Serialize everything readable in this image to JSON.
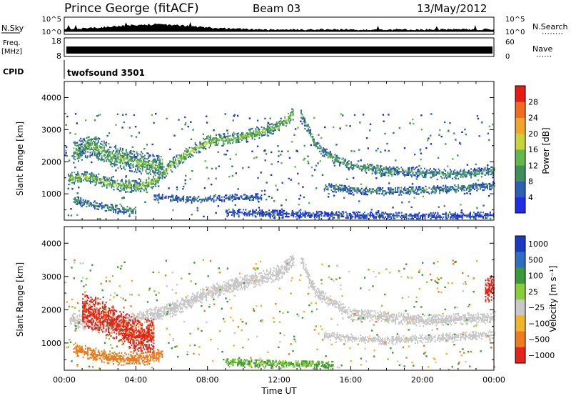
{
  "header": {
    "station": "Prince George (fitACF)",
    "beam": "Beam 03",
    "date": "13/May/2012"
  },
  "top_panels": {
    "nsky_label": "N.Sky",
    "nsky_ticks": [
      "10^5",
      "10^0"
    ],
    "nsearch_label": "N.Search",
    "nsearch_ticks": [
      "10^5",
      "10^0"
    ],
    "freq_label_line1": "Freq.",
    "freq_label_line2": "[MHz]",
    "freq_ticks": [
      "18",
      "8"
    ],
    "nave_label": "Nave",
    "nave_ticks": [
      "60",
      "0"
    ],
    "cpid_label": "CPID",
    "cpid_value": "twofsound 3501"
  },
  "colors": {
    "scatter_gray": "#c8c8c8",
    "power_scale": [
      "#1f2ee6",
      "#2c5fb5",
      "#3f8f5a",
      "#63b84a",
      "#c8d43a",
      "#f2a52a",
      "#f26b1e",
      "#e61b14"
    ],
    "velocity_scale": [
      "#1c39c4",
      "#2f6fc2",
      "#3a9a3a",
      "#8acc3c",
      "#c8c8c8",
      "#f0b42a",
      "#f07a1e",
      "#e6231a"
    ]
  },
  "chart_data": [
    {
      "type": "heatmap",
      "title": "",
      "xlabel": "Time UT",
      "ylabel": "Slant Range [km]",
      "x_ticks": [
        "00:00",
        "04:00",
        "08:00",
        "12:00",
        "16:00",
        "20:00",
        "00:00"
      ],
      "y_ticks": [
        "1000",
        "2000",
        "3000",
        "4000"
      ],
      "xlim": [
        0,
        24
      ],
      "ylim": [
        180,
        4500
      ],
      "colorbar_label": "Power [dB]",
      "colorbar_ticks": [
        "4",
        "8",
        "12",
        "16",
        "20",
        "24",
        "28"
      ],
      "clim": [
        0,
        32
      ],
      "bands": [
        {
          "points": [
            [
              0.2,
              1450
            ],
            [
              1,
              1500
            ],
            [
              2,
              1400
            ],
            [
              3,
              1250
            ],
            [
              4,
              1200
            ],
            [
              5,
              1350
            ],
            [
              6,
              1900
            ],
            [
              7,
              2300
            ],
            [
              8,
              2600
            ],
            [
              10,
              2750
            ],
            [
              12,
              3100
            ],
            [
              12.8,
              3500
            ]
          ],
          "value": 15,
          "width": 180
        },
        {
          "points": [
            [
              13.2,
              3500
            ],
            [
              14,
              2500
            ],
            [
              15,
              2100
            ],
            [
              16,
              1850
            ],
            [
              18,
              1700
            ],
            [
              20,
              1650
            ],
            [
              22,
              1600
            ],
            [
              24,
              1700
            ]
          ],
          "value": 11,
          "width": 150
        },
        {
          "points": [
            [
              14.5,
              1200
            ],
            [
              16,
              1100
            ],
            [
              18,
              1050
            ],
            [
              20,
              1100
            ],
            [
              22,
              1150
            ],
            [
              24,
              1250
            ]
          ],
          "value": 9,
          "width": 120
        },
        {
          "points": [
            [
              0.5,
              2300
            ],
            [
              1.5,
              2500
            ],
            [
              2.5,
              2200
            ],
            [
              4,
              2000
            ],
            [
              5.5,
              1800
            ]
          ],
          "value": 13,
          "width": 350
        },
        {
          "points": [
            [
              0.5,
              800
            ],
            [
              2,
              600
            ],
            [
              3,
              500
            ],
            [
              4,
              450
            ]
          ],
          "value": 10,
          "width": 120
        },
        {
          "points": [
            [
              5,
              900
            ],
            [
              7,
              800
            ],
            [
              9,
              850
            ],
            [
              11,
              900
            ]
          ],
          "value": 7,
          "width": 100
        },
        {
          "points": [
            [
              9,
              400
            ],
            [
              12,
              350
            ],
            [
              16,
              300
            ],
            [
              20,
              280
            ],
            [
              24,
              300
            ]
          ],
          "value": 5,
          "width": 120
        }
      ]
    },
    {
      "type": "heatmap",
      "title": "",
      "xlabel": "Time UT",
      "ylabel": "Slant Range [km]",
      "x_ticks": [
        "00:00",
        "04:00",
        "08:00",
        "12:00",
        "16:00",
        "20:00",
        "00:00"
      ],
      "y_ticks": [
        "1000",
        "2000",
        "3000",
        "4000"
      ],
      "xlim": [
        0,
        24
      ],
      "ylim": [
        180,
        4500
      ],
      "colorbar_label": "Velocity [m s⁻¹]",
      "colorbar_ticks": [
        "1000",
        "500",
        "100",
        "25",
        "−25",
        "−100",
        "−500",
        "−1000"
      ],
      "bands": [
        {
          "points": [
            [
              0.3,
              1700
            ],
            [
              2,
              1500
            ],
            [
              4,
              1700
            ],
            [
              6,
              2000
            ],
            [
              8,
              2500
            ],
            [
              10,
              2800
            ],
            [
              12,
              3100
            ],
            [
              12.8,
              3500
            ]
          ],
          "value": 0,
          "width": 220
        },
        {
          "points": [
            [
              13.2,
              3500
            ],
            [
              14,
              2500
            ],
            [
              16,
              1850
            ],
            [
              20,
              1650
            ],
            [
              24,
              1750
            ]
          ],
          "value": 0,
          "width": 160
        },
        {
          "points": [
            [
              14.5,
              1200
            ],
            [
              18,
              1050
            ],
            [
              24,
              1250
            ]
          ],
          "value": 0,
          "width": 120
        },
        {
          "points": [
            [
              1,
              2000
            ],
            [
              2,
              1800
            ],
            [
              3,
              1500
            ],
            [
              4,
              1200
            ],
            [
              5,
              1200
            ]
          ],
          "value": -700,
          "width": 500
        },
        {
          "points": [
            [
              0.5,
              800
            ],
            [
              2,
              600
            ],
            [
              3,
              500
            ],
            [
              4.5,
              500
            ],
            [
              5.5,
              650
            ]
          ],
          "value": -300,
          "width": 180
        },
        {
          "points": [
            [
              9,
              400
            ],
            [
              12,
              350
            ],
            [
              15,
              320
            ]
          ],
          "value": 60,
          "width": 130
        },
        {
          "points": [
            [
              23.5,
              2500
            ],
            [
              24,
              2700
            ]
          ],
          "value": -800,
          "width": 400
        }
      ]
    }
  ]
}
